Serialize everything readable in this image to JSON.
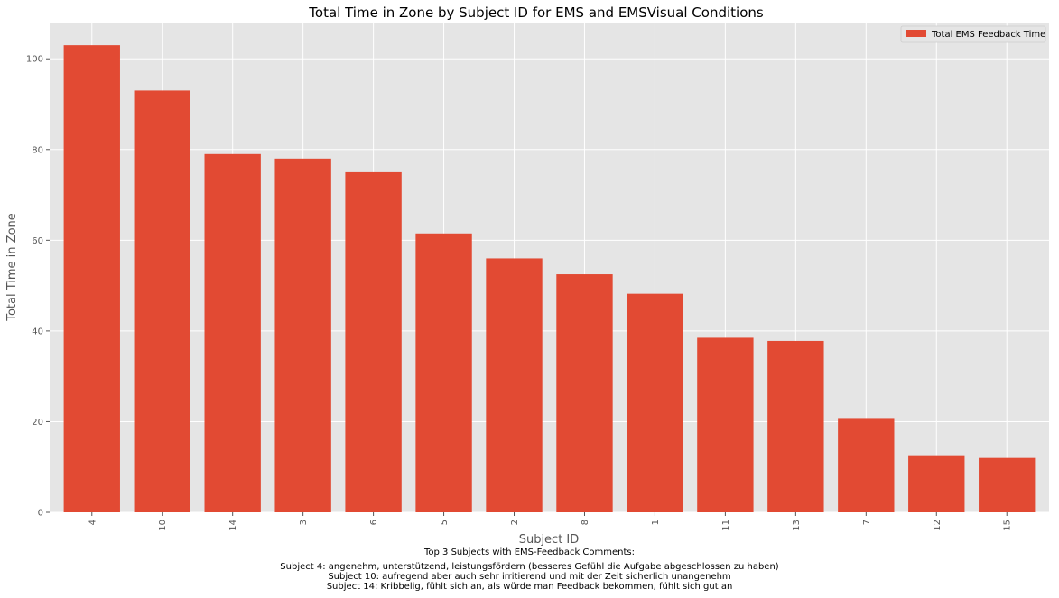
{
  "chart_data": {
    "type": "bar",
    "title": "Total Time in Zone by Subject ID for EMS and EMSVisual Conditions",
    "xlabel": "Subject ID",
    "ylabel": "Total Time in Zone",
    "categories": [
      "4",
      "10",
      "14",
      "3",
      "6",
      "5",
      "2",
      "8",
      "1",
      "11",
      "13",
      "7",
      "12",
      "15"
    ],
    "series": [
      {
        "name": "Total EMS Feedback Time",
        "values": [
          103,
          93,
          79,
          78,
          75,
          61.5,
          56,
          52.5,
          48.2,
          38.5,
          37.8,
          20.8,
          12.4,
          12
        ]
      }
    ],
    "ylim": [
      0,
      108
    ],
    "yticks": [
      0,
      20,
      40,
      60,
      80,
      100
    ],
    "grid": true,
    "legend_position": "top-right",
    "colors": {
      "bar": "#E24A33",
      "plot_background": "#E5E5E5",
      "grid": "#FFFFFF"
    }
  },
  "comments": {
    "heading": "Top 3 Subjects with EMS-Feedback Comments:",
    "lines": [
      "Subject 4: angenehm, unterstützend, leistungsfördern (besseres Gefühl die Aufgabe abgeschlossen zu haben)",
      "Subject 10: aufregend aber auch sehr irritierend und mit der Zeit sicherlich unangenehm",
      "Subject 14: Kribbelig, fühlt sich an, als würde man Feedback bekommen, fühlt sich gut an"
    ]
  }
}
